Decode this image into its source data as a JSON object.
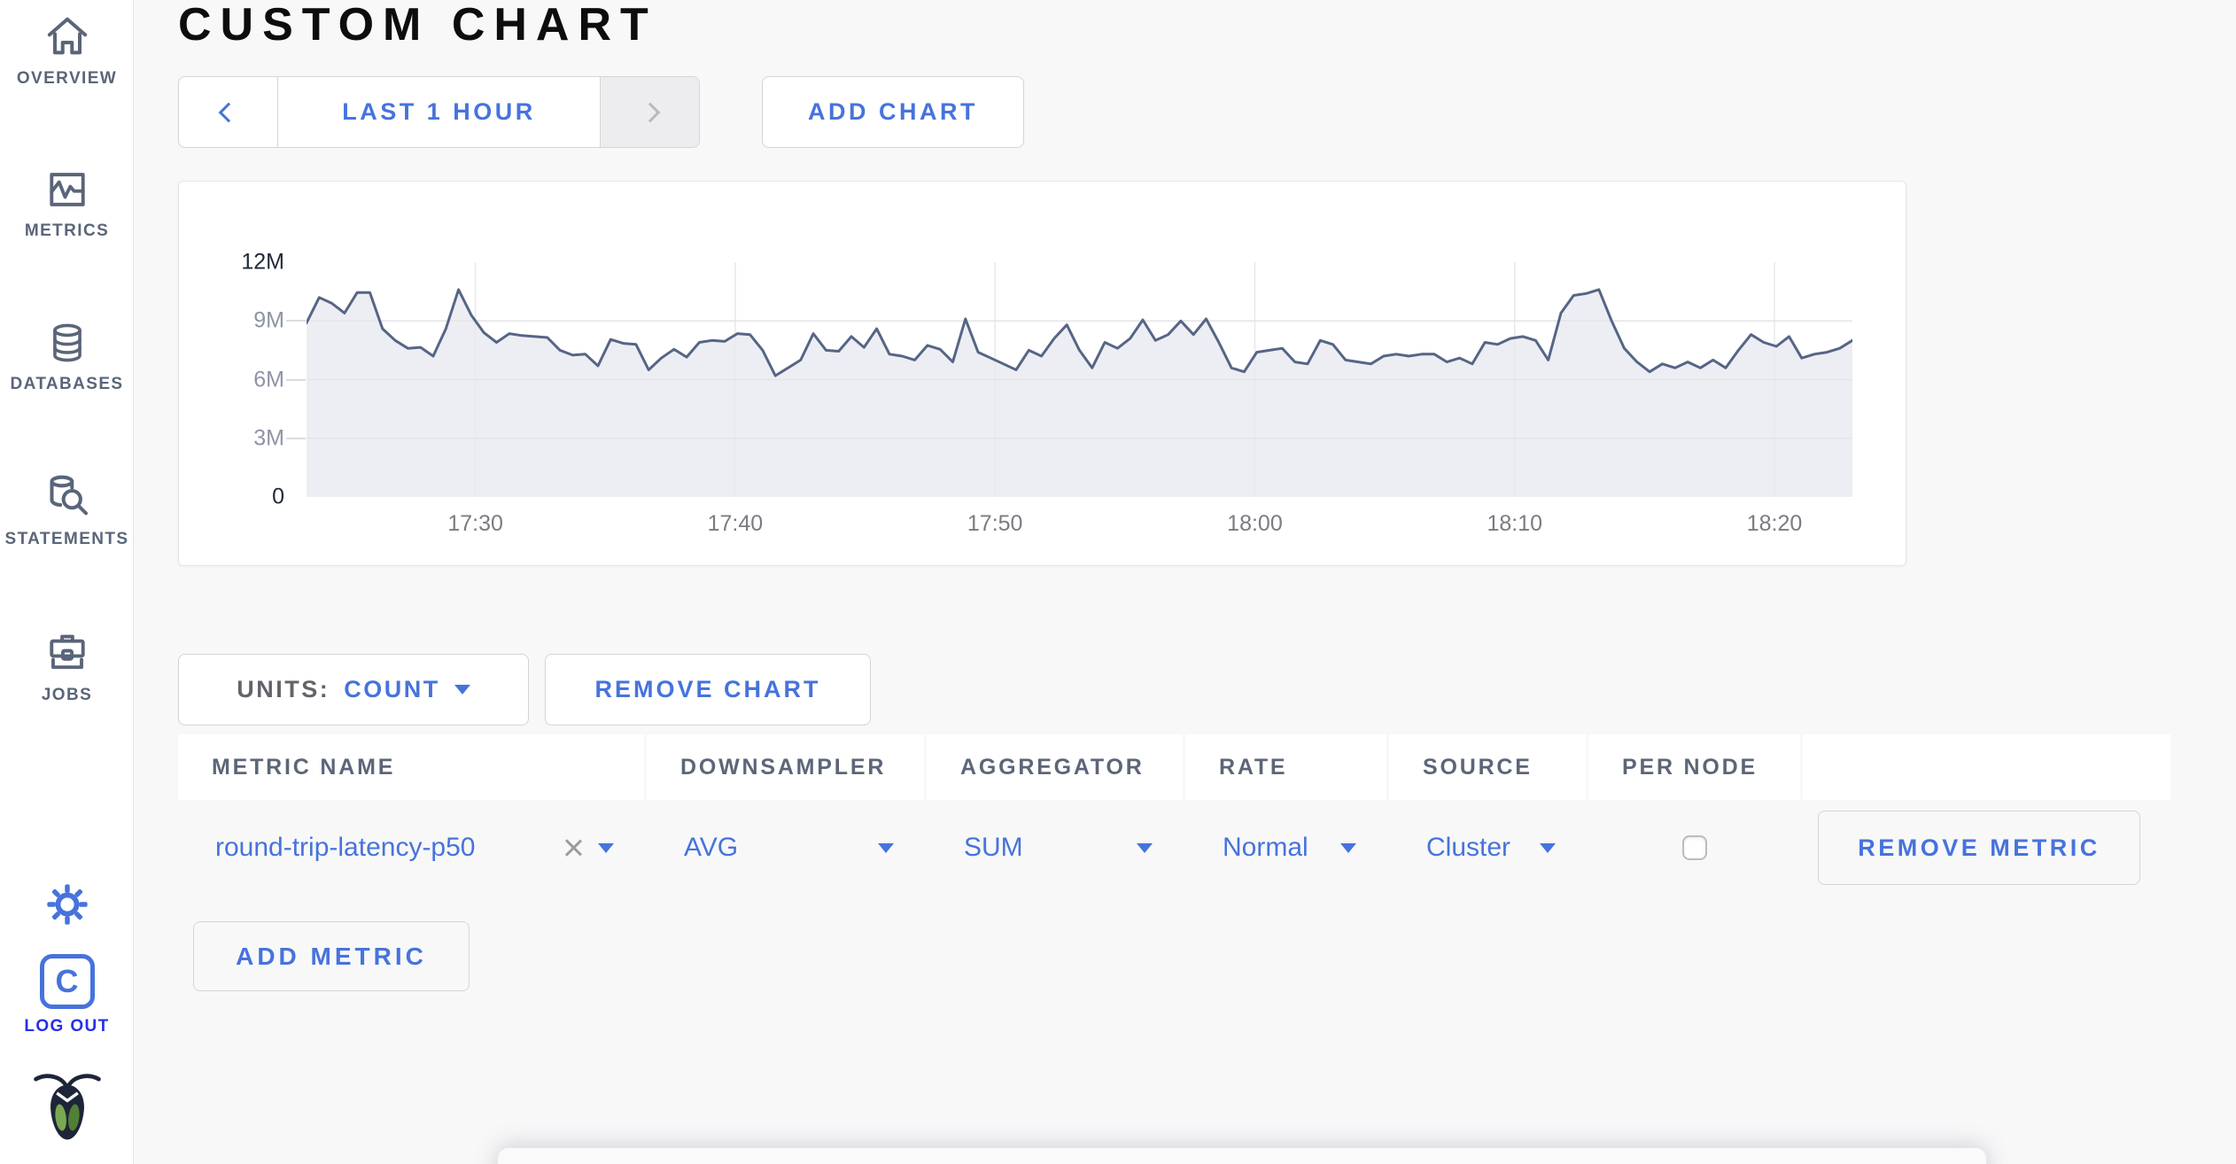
{
  "app": {
    "accent_color": "#4673dc",
    "logout_color": "#2430e8",
    "sidebar_icon_color": "#5a6579"
  },
  "sidebar": {
    "items": [
      {
        "label": "OVERVIEW",
        "icon": "home-icon"
      },
      {
        "label": "METRICS",
        "icon": "metrics-icon"
      },
      {
        "label": "DATABASES",
        "icon": "database-icon"
      },
      {
        "label": "STATEMENTS",
        "icon": "statements-icon"
      },
      {
        "label": "JOBS",
        "icon": "jobs-icon"
      }
    ],
    "logout": {
      "icon_letter": "C",
      "label": "LOG OUT"
    }
  },
  "page": {
    "title": "CUSTOM CHART"
  },
  "toolbar": {
    "time_range_label": "LAST 1 HOUR",
    "add_chart_label": "ADD CHART"
  },
  "chart_toolbar": {
    "units_label": "UNITS:",
    "units_value": "COUNT",
    "remove_chart_label": "REMOVE CHART"
  },
  "metrics_table": {
    "columns": [
      "METRIC NAME",
      "DOWNSAMPLER",
      "AGGREGATOR",
      "RATE",
      "SOURCE",
      "PER NODE",
      ""
    ],
    "rows": [
      {
        "metric_name": "round-trip-latency-p50",
        "downsampler": "AVG",
        "aggregator": "SUM",
        "rate": "Normal",
        "source": "Cluster",
        "per_node_checked": false,
        "remove_label": "REMOVE METRIC"
      }
    ],
    "add_metric_label": "ADD METRIC"
  },
  "chart_data": {
    "type": "area",
    "title": "",
    "units": "count",
    "legend": false,
    "grid": true,
    "x_domain": [
      "17:23.5",
      "18:23"
    ],
    "x_ticks": [
      "17:30",
      "17:40",
      "17:50",
      "18:00",
      "18:10",
      "18:20"
    ],
    "ylim_millions": [
      0,
      12
    ],
    "y_gridlines_millions": [
      3,
      6,
      9
    ],
    "y_ticks": [
      {
        "label": "0",
        "value_millions": 0,
        "emphasis": true
      },
      {
        "label": "3M",
        "value_millions": 3,
        "emphasis": false
      },
      {
        "label": "6M",
        "value_millions": 6,
        "emphasis": false
      },
      {
        "label": "9M",
        "value_millions": 9,
        "emphasis": false
      },
      {
        "label": "12M",
        "value_millions": 12,
        "emphasis": true
      }
    ],
    "line_color": "#566586",
    "fill_color": "#edeef3",
    "grid_color_v": "#e9e9ec",
    "grid_color_h": "#e4e4e8",
    "series": [
      {
        "name": "round-trip-latency-p50",
        "values_millions": [
          8.9,
          10.2,
          9.9,
          9.4,
          10.45,
          10.45,
          8.6,
          8.0,
          7.6,
          7.65,
          7.2,
          8.6,
          10.6,
          9.3,
          8.4,
          7.9,
          8.35,
          8.25,
          8.2,
          8.15,
          7.5,
          7.25,
          7.3,
          6.7,
          8.05,
          7.85,
          7.8,
          6.5,
          7.1,
          7.55,
          7.15,
          7.9,
          8.0,
          7.95,
          8.35,
          8.3,
          7.5,
          6.2,
          6.6,
          7.0,
          8.35,
          7.5,
          7.45,
          8.2,
          7.65,
          8.6,
          7.3,
          7.2,
          7.0,
          7.75,
          7.55,
          6.9,
          9.1,
          7.4,
          7.1,
          6.8,
          6.5,
          7.5,
          7.2,
          8.1,
          8.8,
          7.5,
          6.6,
          7.9,
          7.6,
          8.1,
          9.05,
          8.0,
          8.3,
          9.0,
          8.3,
          9.1,
          7.9,
          6.6,
          6.4,
          7.4,
          7.5,
          7.6,
          6.9,
          6.8,
          8.0,
          7.8,
          7.0,
          6.9,
          6.8,
          7.2,
          7.3,
          7.2,
          7.3,
          7.3,
          6.9,
          7.1,
          6.8,
          7.9,
          7.8,
          8.1,
          8.2,
          8.0,
          7.0,
          9.4,
          10.3,
          10.4,
          10.6,
          9.0,
          7.6,
          6.9,
          6.4,
          6.8,
          6.6,
          6.9,
          6.6,
          7.0,
          6.6,
          7.5,
          8.3,
          7.9,
          7.7,
          8.2,
          7.1,
          7.3,
          7.4,
          7.6,
          8.0
        ]
      }
    ]
  }
}
